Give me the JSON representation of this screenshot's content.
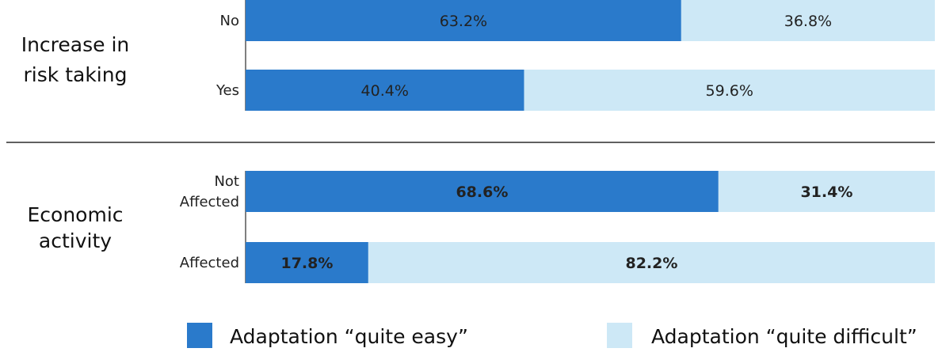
{
  "chart_data": {
    "type": "bar",
    "orientation": "horizontal",
    "stacked": true,
    "percent_stacked": true,
    "title": "",
    "xlim": [
      0,
      100
    ],
    "groups": [
      {
        "label": "Increase in risk taking",
        "label_lines": [
          "Increase in",
          "risk taking"
        ],
        "bold_values": false,
        "categories": [
          {
            "label_lines": [
              "No"
            ],
            "values": [
              63.2,
              36.8
            ],
            "value_labels": [
              "63.2%",
              "36.8%"
            ]
          },
          {
            "label_lines": [
              "Yes"
            ],
            "values": [
              40.4,
              59.6
            ],
            "value_labels": [
              "40.4%",
              "59.6%"
            ]
          }
        ]
      },
      {
        "label": "Economic activity",
        "label_lines": [
          "Economic",
          "activity"
        ],
        "bold_values": true,
        "categories": [
          {
            "label_lines": [
              "Not",
              "Affected"
            ],
            "values": [
              68.6,
              31.4
            ],
            "value_labels": [
              "68.6%",
              "31.4%"
            ]
          },
          {
            "label_lines": [
              "Affected"
            ],
            "values": [
              17.8,
              82.2
            ],
            "value_labels": [
              "17.8%",
              "82.2%"
            ]
          }
        ]
      }
    ],
    "series": [
      {
        "name": "Adaptation “quite easy”",
        "color": "#2a7acb"
      },
      {
        "name": "Adaptation “quite difficult”",
        "color": "#cde8f6"
      }
    ],
    "legend_position": "bottom"
  }
}
